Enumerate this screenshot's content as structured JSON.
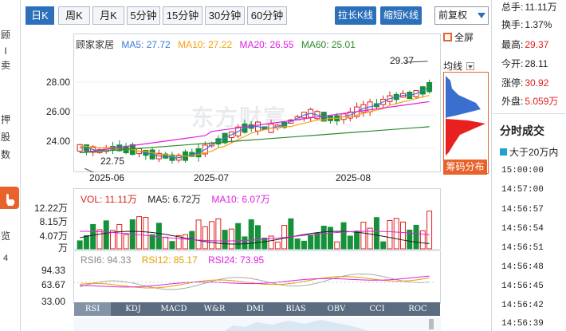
{
  "left_strip": {
    "chars": [
      "顾",
      "I",
      "卖",
      "押",
      "股",
      "数",
      "览",
      "4"
    ]
  },
  "toolbar": {
    "tabs": [
      {
        "label": "日K"
      },
      {
        "label": "周K"
      },
      {
        "label": "月K"
      },
      {
        "label": "5分钟"
      },
      {
        "label": "15分钟"
      },
      {
        "label": "30分钟"
      },
      {
        "label": "60分钟"
      }
    ],
    "stretch_label": "拉长K线",
    "shrink_label": "缩短K线",
    "rights_select": "前复权",
    "fullscreen_label": "全屏"
  },
  "main_legend": {
    "name": "顾家家居",
    "ma5": "MA5: 27.72",
    "ma10": "MA10: 27.22",
    "ma20": "MA20: 26.55",
    "ma60": "MA60: 25.01",
    "colors": {
      "ma5": "#3a7bd5",
      "ma10": "#f5a20b",
      "ma20": "#e020e0",
      "ma60": "#2d8a2d"
    }
  },
  "main_labels": {
    "high_note": "29.37",
    "low_note": "22.75",
    "avg_line": "均线",
    "y_ticks": [
      "28.00",
      "26.00",
      "24.00"
    ],
    "x_ticks": [
      "2025-06",
      "2025-07",
      "2025-08"
    ]
  },
  "distribution_button": "筹码分布",
  "watermark": "东方财富",
  "volume_legend": {
    "vol": "VOL: 11.11万",
    "ma5": "MA5: 6.72万",
    "ma10": "MA10: 6.07万",
    "y_ticks": [
      "12.22万",
      "8.15万",
      "4.07万",
      "万"
    ]
  },
  "rsi_legend": {
    "rsi6": "RSI6: 94.33",
    "rsi12": "RSI12: 85.17",
    "rsi24": "RSI24: 73.95",
    "y_ticks": [
      "94.33",
      "63.67",
      "33.00"
    ]
  },
  "indicator_tabs": [
    "RSI",
    "KDJ",
    "MACD",
    "W&R",
    "DMI",
    "BIAS",
    "OBV",
    "CCI",
    "ROC"
  ],
  "quote": {
    "rows": [
      {
        "label": "总手:",
        "value": "11.11万",
        "color": "#222"
      },
      {
        "label": "换手:",
        "value": "1.37%",
        "color": "#222"
      },
      {
        "label": "最高:",
        "value": "29.37",
        "color": "#e0201f"
      },
      {
        "label": "今开:",
        "value": "28.11",
        "color": "#222"
      },
      {
        "label": "涨停:",
        "value": "30.92",
        "color": "#e0201f"
      },
      {
        "label": "外盘:",
        "value": "5.059万",
        "color": "#e0201f"
      }
    ]
  },
  "fenshi": {
    "title": "分时成交",
    "filter": "大于20万内",
    "times": [
      "15:00:00",
      "14:57:00",
      "14:56:57",
      "14:56:54",
      "14:56:51",
      "14:56:48",
      "14:56:45",
      "14:56:42",
      "14:56:39"
    ]
  },
  "chart_data": {
    "type": "candlestick",
    "price_range": [
      23.0,
      29.8
    ],
    "x_ticks": [
      "2025-06",
      "2025-07",
      "2025-08"
    ],
    "highest": 29.37,
    "lowest": 22.75,
    "series": [
      {
        "name": "MA5",
        "values": [
          24.0,
          24.0,
          23.9,
          23.8,
          23.9,
          24.0,
          24.0,
          23.9,
          23.9,
          23.8,
          23.7,
          23.6,
          23.5,
          23.5,
          23.4,
          23.4,
          23.5,
          23.6,
          23.7,
          23.9,
          24.2,
          24.4,
          24.6,
          24.8,
          25.0,
          25.2,
          25.3,
          25.3,
          25.2,
          25.2,
          25.3,
          25.4,
          25.6,
          25.8,
          26.0,
          26.1,
          26.0,
          25.9,
          25.8,
          25.8,
          25.9,
          26.0,
          26.2,
          26.4,
          26.5,
          26.6,
          26.8,
          27.0,
          27.1,
          27.2,
          27.2,
          27.3,
          27.5,
          27.7
        ]
      },
      {
        "name": "MA10",
        "values": [
          24.1,
          24.1,
          24.0,
          24.0,
          24.0,
          24.0,
          23.9,
          23.9,
          23.9,
          23.8,
          23.8,
          23.7,
          23.6,
          23.6,
          23.5,
          23.5,
          23.5,
          23.5,
          23.6,
          23.7,
          23.8,
          24.0,
          24.1,
          24.3,
          24.5,
          24.7,
          24.9,
          25.0,
          25.1,
          25.2,
          25.2,
          25.3,
          25.3,
          25.4,
          25.5,
          25.6,
          25.7,
          25.7,
          25.8,
          25.8,
          25.9,
          25.9,
          26.0,
          26.1,
          26.2,
          26.3,
          26.4,
          26.6,
          26.7,
          26.8,
          26.9,
          27.0,
          27.1,
          27.2
        ]
      }
    ],
    "volume": {
      "unit": "万",
      "max": 12.22,
      "last": 11.11
    },
    "rsi": {
      "rsi6": 94.33,
      "rsi12": 85.17,
      "rsi24": 73.95
    }
  }
}
